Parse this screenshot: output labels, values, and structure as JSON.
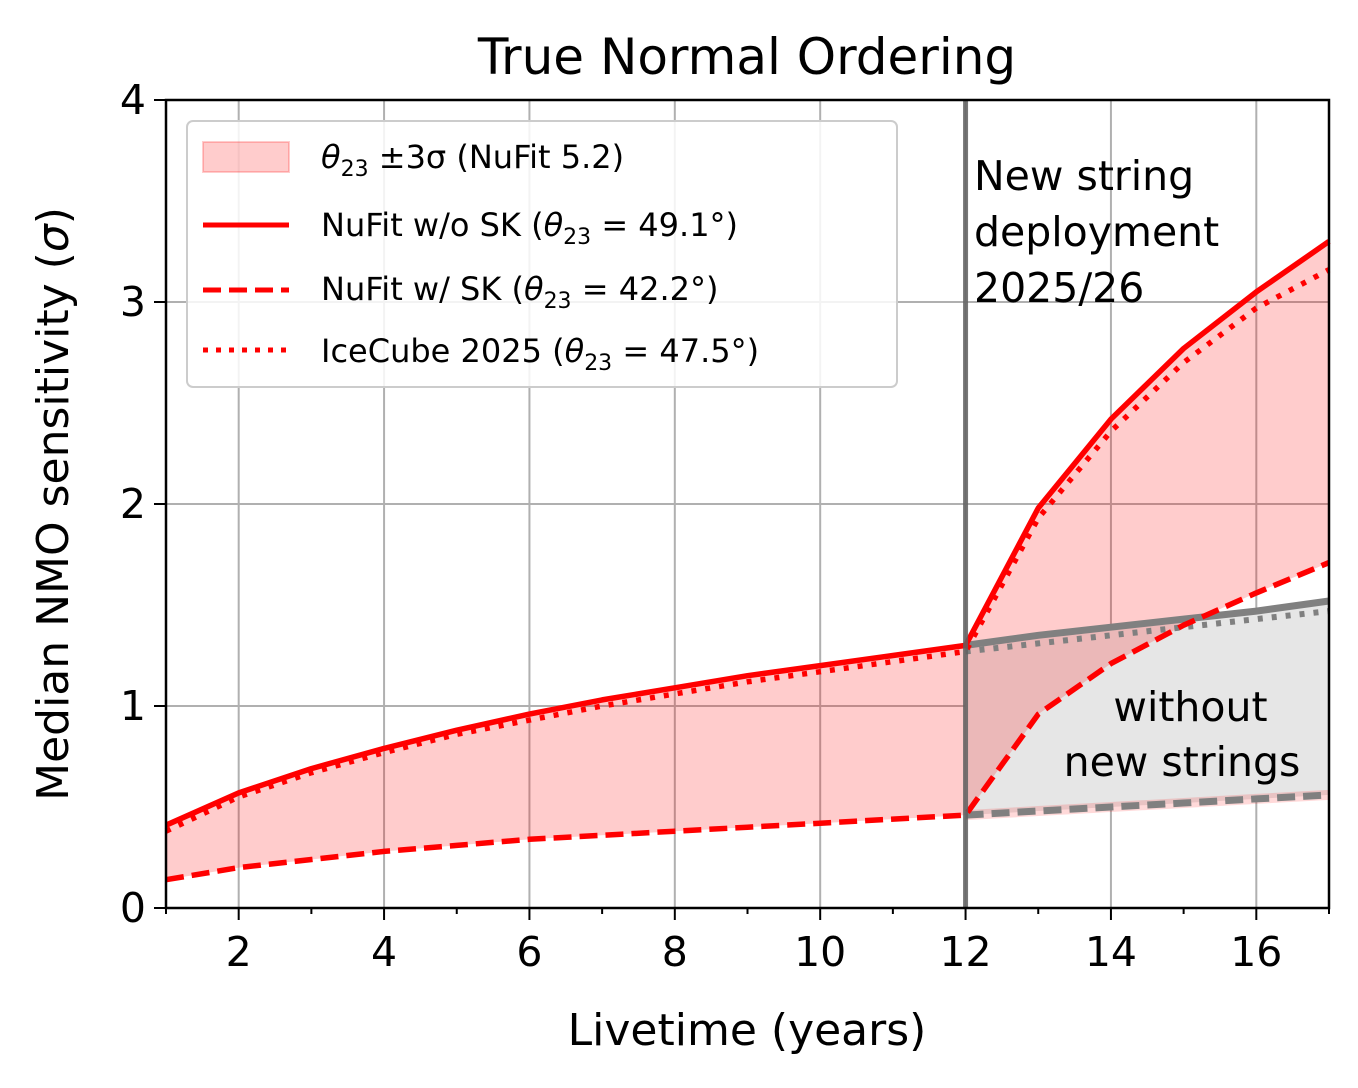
{
  "chart_data": {
    "type": "line",
    "title": "True Normal Ordering",
    "xlabel": "Livetime (years)",
    "ylabel": "Median NMO sensitivity (σ)",
    "xlim": [
      1,
      17
    ],
    "ylim": [
      0,
      4
    ],
    "xticks": [
      2,
      4,
      6,
      8,
      10,
      12,
      14,
      16
    ],
    "yticks": [
      0,
      1,
      2,
      3,
      4
    ],
    "grid": true,
    "legend_position": "top-left",
    "x": [
      1,
      2,
      3,
      4,
      5,
      6,
      7,
      8,
      9,
      10,
      11,
      12
    ],
    "series": [
      {
        "name": "NuFit w/o SK (θ23 = 49.1°)",
        "style": "solid",
        "color": "#ff0000",
        "values": [
          0.41,
          0.57,
          0.69,
          0.79,
          0.88,
          0.96,
          1.03,
          1.09,
          1.15,
          1.2,
          1.25,
          1.3
        ]
      },
      {
        "name": "NuFit w/ SK (θ23 = 42.2°)",
        "style": "dashed",
        "color": "#ff0000",
        "values": [
          0.14,
          0.2,
          0.24,
          0.28,
          0.31,
          0.34,
          0.36,
          0.38,
          0.4,
          0.42,
          0.44,
          0.46
        ]
      },
      {
        "name": "IceCube 2025 (θ23 = 47.5°)",
        "style": "dotted",
        "color": "#ff0000",
        "values": [
          0.38,
          0.55,
          0.67,
          0.77,
          0.86,
          0.93,
          1.0,
          1.06,
          1.12,
          1.17,
          1.22,
          1.27
        ]
      }
    ],
    "with_new_strings": {
      "x": [
        12,
        13,
        14,
        15,
        16,
        17
      ],
      "solid": [
        1.3,
        1.98,
        2.42,
        2.77,
        3.05,
        3.3
      ],
      "dotted": [
        1.27,
        1.93,
        2.36,
        2.7,
        2.97,
        3.16
      ],
      "dashed": [
        0.46,
        0.96,
        1.21,
        1.4,
        1.56,
        1.71
      ]
    },
    "without_new_strings": {
      "x": [
        12,
        13,
        14,
        15,
        16,
        17
      ],
      "solid": [
        1.3,
        1.35,
        1.39,
        1.43,
        1.47,
        1.52
      ],
      "dotted": [
        1.27,
        1.31,
        1.35,
        1.39,
        1.43,
        1.47
      ],
      "dashed": [
        0.46,
        0.48,
        0.5,
        0.52,
        0.54,
        0.56
      ],
      "color": "#808080",
      "fill_color": "#e6e6e6"
    },
    "band": {
      "name": "θ23 ±3σ (NuFit 5.2)",
      "color": "#ff0000",
      "opacity": 0.2
    },
    "vline": {
      "x": 12,
      "color": "#606060"
    },
    "annotations": [
      {
        "text_lines": [
          "New string",
          "deployment",
          "2025/26"
        ]
      },
      {
        "text_lines": [
          "without",
          "new strings"
        ]
      }
    ]
  },
  "legend": {
    "band_label": {
      "theta": "θ",
      "sub": "23",
      "rest": " ±3σ (NuFit 5.2)"
    },
    "solid_label": {
      "pre": "NuFit w/o SK (",
      "theta": "θ",
      "sub": "23",
      "post": " = 49.1°)"
    },
    "dashed_label": {
      "pre": "NuFit w/ SK (",
      "theta": "θ",
      "sub": "23",
      "post": " = 42.2°)"
    },
    "dotted_label": {
      "pre": "IceCube 2025 (",
      "theta": "θ",
      "sub": "23",
      "post": " = 47.5°)"
    }
  },
  "ylabel_parts": {
    "pre": "Median NMO sensitivity (",
    "sigma": "σ",
    "post": ")"
  }
}
